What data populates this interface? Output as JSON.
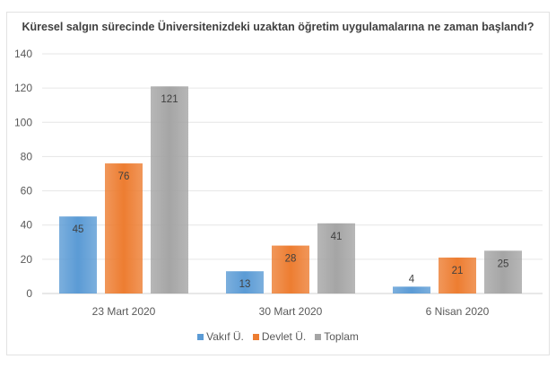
{
  "chart_data": {
    "type": "bar",
    "title": "Küresel salgın sürecinde Üniversitenizdeki uzaktan öğretim uygulamalarına ne zaman başlandı?",
    "categories": [
      "23 Mart 2020",
      "30 Mart 2020",
      "6 Nisan 2020"
    ],
    "series": [
      {
        "name": "Vakıf Ü.",
        "values": [
          45,
          13,
          4
        ],
        "color": "#5b9bd5"
      },
      {
        "name": "Devlet Ü.",
        "values": [
          76,
          28,
          21
        ],
        "color": "#ed7d31"
      },
      {
        "name": "Toplam",
        "values": [
          121,
          41,
          25
        ],
        "color": "#a5a5a5"
      }
    ],
    "ylim": [
      0,
      140
    ],
    "yticks": [
      0,
      20,
      40,
      60,
      80,
      100,
      120,
      140
    ],
    "xlabel": "",
    "ylabel": "",
    "grid": true,
    "legend": "bottom"
  }
}
